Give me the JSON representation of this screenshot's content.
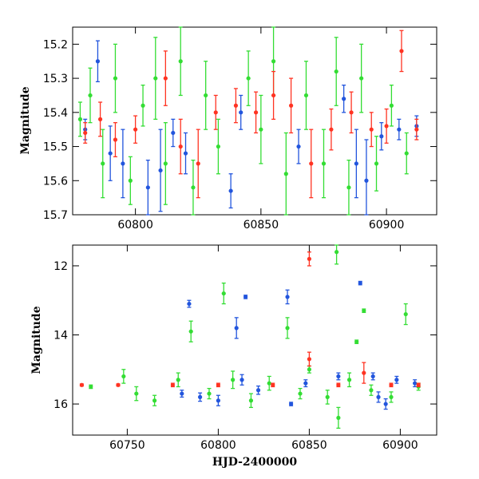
{
  "chart_data": [
    {
      "type": "scatter",
      "panel": "top",
      "title": "",
      "xlabel": "",
      "ylabel": "Magnitude",
      "xlim": [
        60775,
        60920
      ],
      "ylim": [
        15.7,
        15.15
      ],
      "y_inverted": true,
      "xticks": [
        60800,
        60850,
        60900
      ],
      "yticks": [
        15.2,
        15.3,
        15.4,
        15.5,
        15.6,
        15.7
      ],
      "grid": false,
      "legend": "none",
      "series": [
        {
          "color": "#2255dd",
          "points": [
            {
              "x": 60780,
              "y": 15.45,
              "err": 0.03
            },
            {
              "x": 60785,
              "y": 15.25,
              "err": 0.06
            },
            {
              "x": 60790,
              "y": 15.52,
              "err": 0.08
            },
            {
              "x": 60795,
              "y": 15.55,
              "err": 0.1
            },
            {
              "x": 60805,
              "y": 15.62,
              "err": 0.08
            },
            {
              "x": 60810,
              "y": 15.57,
              "err": 0.12
            },
            {
              "x": 60815,
              "y": 15.46,
              "err": 0.04
            },
            {
              "x": 60820,
              "y": 15.52,
              "err": 0.06
            },
            {
              "x": 60838,
              "y": 15.63,
              "err": 0.05
            },
            {
              "x": 60842,
              "y": 15.4,
              "err": 0.05
            },
            {
              "x": 60865,
              "y": 15.5,
              "err": 0.05
            },
            {
              "x": 60883,
              "y": 15.36,
              "err": 0.04
            },
            {
              "x": 60888,
              "y": 15.55,
              "err": 0.1
            },
            {
              "x": 60892,
              "y": 15.6,
              "err": 0.12
            },
            {
              "x": 60898,
              "y": 15.47,
              "err": 0.04
            },
            {
              "x": 60905,
              "y": 15.45,
              "err": 0.03
            },
            {
              "x": 60912,
              "y": 15.44,
              "err": 0.03
            }
          ]
        },
        {
          "color": "#33dd33",
          "points": [
            {
              "x": 60778,
              "y": 15.42,
              "err": 0.05
            },
            {
              "x": 60782,
              "y": 15.35,
              "err": 0.08
            },
            {
              "x": 60787,
              "y": 15.55,
              "err": 0.1
            },
            {
              "x": 60792,
              "y": 15.3,
              "err": 0.1
            },
            {
              "x": 60798,
              "y": 15.6,
              "err": 0.07
            },
            {
              "x": 60803,
              "y": 15.38,
              "err": 0.06
            },
            {
              "x": 60808,
              "y": 15.3,
              "err": 0.12
            },
            {
              "x": 60812,
              "y": 15.55,
              "err": 0.12
            },
            {
              "x": 60818,
              "y": 15.25,
              "err": 0.1
            },
            {
              "x": 60823,
              "y": 15.62,
              "err": 0.08
            },
            {
              "x": 60828,
              "y": 15.35,
              "err": 0.1
            },
            {
              "x": 60833,
              "y": 15.5,
              "err": 0.08
            },
            {
              "x": 60845,
              "y": 15.3,
              "err": 0.08
            },
            {
              "x": 60850,
              "y": 15.45,
              "err": 0.1
            },
            {
              "x": 60855,
              "y": 15.25,
              "err": 0.1
            },
            {
              "x": 60860,
              "y": 15.58,
              "err": 0.12
            },
            {
              "x": 60868,
              "y": 15.35,
              "err": 0.1
            },
            {
              "x": 60875,
              "y": 15.55,
              "err": 0.1
            },
            {
              "x": 60880,
              "y": 15.28,
              "err": 0.1
            },
            {
              "x": 60885,
              "y": 15.62,
              "err": 0.08
            },
            {
              "x": 60890,
              "y": 15.3,
              "err": 0.1
            },
            {
              "x": 60896,
              "y": 15.55,
              "err": 0.08
            },
            {
              "x": 60902,
              "y": 15.38,
              "err": 0.06
            },
            {
              "x": 60908,
              "y": 15.52,
              "err": 0.06
            }
          ]
        },
        {
          "color": "#ff3322",
          "points": [
            {
              "x": 60780,
              "y": 15.46,
              "err": 0.03
            },
            {
              "x": 60786,
              "y": 15.42,
              "err": 0.05
            },
            {
              "x": 60792,
              "y": 15.48,
              "err": 0.05
            },
            {
              "x": 60800,
              "y": 15.45,
              "err": 0.04
            },
            {
              "x": 60812,
              "y": 15.3,
              "err": 0.08
            },
            {
              "x": 60818,
              "y": 15.5,
              "err": 0.08
            },
            {
              "x": 60825,
              "y": 15.55,
              "err": 0.1
            },
            {
              "x": 60832,
              "y": 15.4,
              "err": 0.05
            },
            {
              "x": 60840,
              "y": 15.38,
              "err": 0.05
            },
            {
              "x": 60848,
              "y": 15.4,
              "err": 0.06
            },
            {
              "x": 60855,
              "y": 15.35,
              "err": 0.07
            },
            {
              "x": 60862,
              "y": 15.38,
              "err": 0.08
            },
            {
              "x": 60870,
              "y": 15.55,
              "err": 0.1
            },
            {
              "x": 60878,
              "y": 15.45,
              "err": 0.06
            },
            {
              "x": 60886,
              "y": 15.4,
              "err": 0.06
            },
            {
              "x": 60894,
              "y": 15.45,
              "err": 0.05
            },
            {
              "x": 60900,
              "y": 15.44,
              "err": 0.05
            },
            {
              "x": 60906,
              "y": 15.22,
              "err": 0.06
            },
            {
              "x": 60912,
              "y": 15.45,
              "err": 0.03
            }
          ]
        }
      ]
    },
    {
      "type": "scatter",
      "panel": "bottom",
      "title": "",
      "xlabel": "HJD-2400000",
      "ylabel": "Magnitude",
      "xlim": [
        60720,
        60920
      ],
      "ylim": [
        16.9,
        11.4
      ],
      "y_inverted": true,
      "xticks": [
        60750,
        60800,
        60850,
        60900
      ],
      "yticks": [
        12,
        14,
        16
      ],
      "grid": false,
      "legend": "none",
      "series": [
        {
          "color": "#2255dd",
          "points": [
            {
              "x": 60780,
              "y": 15.7,
              "err": 0.1
            },
            {
              "x": 60784,
              "y": 13.1,
              "err": 0.1
            },
            {
              "x": 60790,
              "y": 15.8,
              "err": 0.12
            },
            {
              "x": 60800,
              "y": 15.9,
              "err": 0.15
            },
            {
              "x": 60810,
              "y": 13.8,
              "err": 0.3
            },
            {
              "x": 60813,
              "y": 15.3,
              "err": 0.15
            },
            {
              "x": 60815,
              "y": 12.9,
              "err": 0.05
            },
            {
              "x": 60822,
              "y": 15.6,
              "err": 0.12
            },
            {
              "x": 60838,
              "y": 12.9,
              "err": 0.2
            },
            {
              "x": 60840,
              "y": 16.0,
              "err": 0.05
            },
            {
              "x": 60848,
              "y": 15.4,
              "err": 0.1
            },
            {
              "x": 60866,
              "y": 15.2,
              "err": 0.1
            },
            {
              "x": 60878,
              "y": 12.5,
              "err": 0.05
            },
            {
              "x": 60885,
              "y": 15.2,
              "err": 0.1
            },
            {
              "x": 60888,
              "y": 15.8,
              "err": 0.15
            },
            {
              "x": 60892,
              "y": 16.0,
              "err": 0.15
            },
            {
              "x": 60898,
              "y": 15.3,
              "err": 0.1
            },
            {
              "x": 60908,
              "y": 15.4,
              "err": 0.1
            }
          ]
        },
        {
          "color": "#33dd33",
          "points": [
            {
              "x": 60730,
              "y": 15.5,
              "err": 0.05
            },
            {
              "x": 60748,
              "y": 15.2,
              "err": 0.2
            },
            {
              "x": 60755,
              "y": 15.7,
              "err": 0.2
            },
            {
              "x": 60765,
              "y": 15.9,
              "err": 0.15
            },
            {
              "x": 60778,
              "y": 15.3,
              "err": 0.2
            },
            {
              "x": 60785,
              "y": 13.9,
              "err": 0.3
            },
            {
              "x": 60795,
              "y": 15.7,
              "err": 0.15
            },
            {
              "x": 60803,
              "y": 12.8,
              "err": 0.3
            },
            {
              "x": 60808,
              "y": 15.3,
              "err": 0.25
            },
            {
              "x": 60818,
              "y": 15.9,
              "err": 0.2
            },
            {
              "x": 60828,
              "y": 15.4,
              "err": 0.2
            },
            {
              "x": 60838,
              "y": 13.8,
              "err": 0.3
            },
            {
              "x": 60845,
              "y": 15.7,
              "err": 0.15
            },
            {
              "x": 60850,
              "y": 15.0,
              "err": 0.1
            },
            {
              "x": 60860,
              "y": 15.8,
              "err": 0.2
            },
            {
              "x": 60865,
              "y": 11.6,
              "err": 0.35
            },
            {
              "x": 60866,
              "y": 16.4,
              "err": 0.3
            },
            {
              "x": 60872,
              "y": 15.3,
              "err": 0.2
            },
            {
              "x": 60876,
              "y": 14.2,
              "err": 0.05
            },
            {
              "x": 60880,
              "y": 13.3,
              "err": 0.05
            },
            {
              "x": 60884,
              "y": 15.6,
              "err": 0.15
            },
            {
              "x": 60895,
              "y": 15.8,
              "err": 0.15
            },
            {
              "x": 60903,
              "y": 13.4,
              "err": 0.3
            },
            {
              "x": 60910,
              "y": 15.5,
              "err": 0.1
            }
          ]
        },
        {
          "color": "#ff3322",
          "points": [
            {
              "x": 60725,
              "y": 15.45,
              "err": 0.03
            },
            {
              "x": 60745,
              "y": 15.45,
              "err": 0.03
            },
            {
              "x": 60775,
              "y": 15.45,
              "err": 0.05
            },
            {
              "x": 60800,
              "y": 15.45,
              "err": 0.05
            },
            {
              "x": 60830,
              "y": 15.45,
              "err": 0.05
            },
            {
              "x": 60850,
              "y": 11.8,
              "err": 0.2
            },
            {
              "x": 60850,
              "y": 14.7,
              "err": 0.2
            },
            {
              "x": 60866,
              "y": 15.45,
              "err": 0.05
            },
            {
              "x": 60880,
              "y": 15.1,
              "err": 0.3
            },
            {
              "x": 60895,
              "y": 15.45,
              "err": 0.05
            },
            {
              "x": 60910,
              "y": 15.45,
              "err": 0.05
            }
          ]
        }
      ]
    }
  ]
}
